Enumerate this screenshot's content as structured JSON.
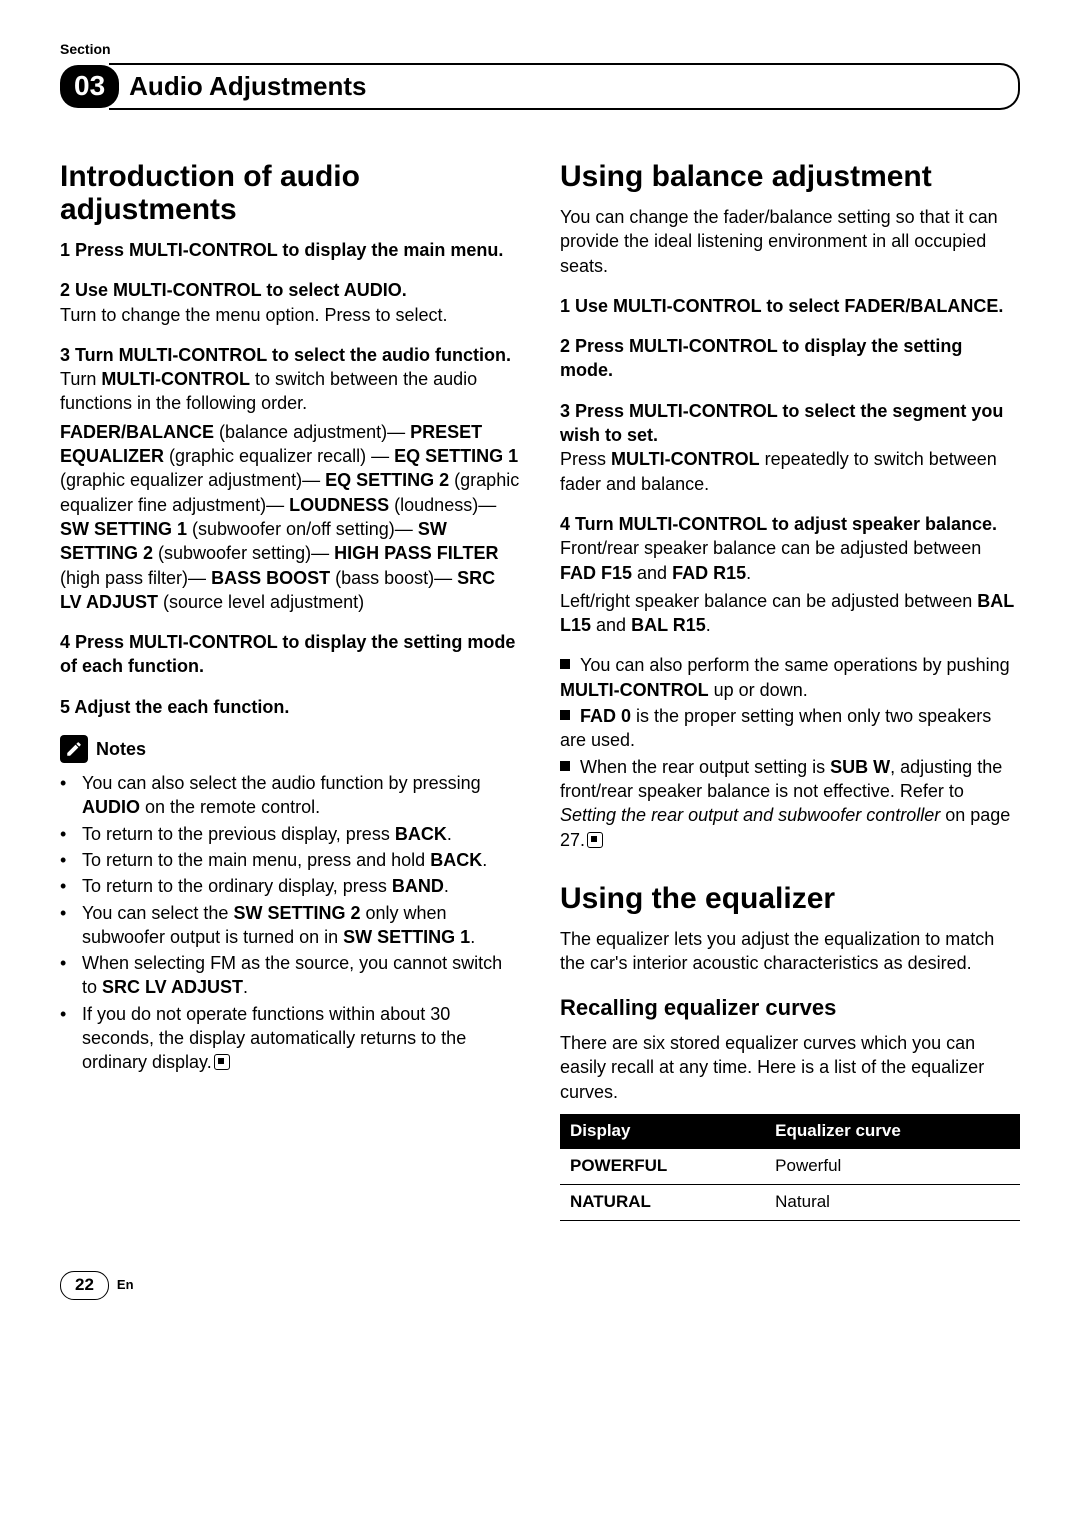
{
  "section_label": "Section",
  "section_number": "03",
  "section_title": "Audio Adjustments",
  "left": {
    "h1": "Introduction of audio adjustments",
    "step1": "1    Press MULTI-CONTROL to display the main menu.",
    "step2_head": "2    Use MULTI-CONTROL to select AUDIO.",
    "step2_body": "Turn to change the menu option. Press to select.",
    "step3_head": "3    Turn MULTI-CONTROL to select the audio function.",
    "step3_l1a": "Turn ",
    "step3_l1b": "MULTI-CONTROL",
    "step3_l1c": " to switch between the audio functions in the following order.",
    "seq_fb": "FADER/BALANCE",
    "seq_fb_d": " (balance adjustment)—",
    "seq_pe": "PRESET EQUALIZER",
    "seq_pe_d": " (graphic equalizer recall) —",
    "seq_e1": "EQ SETTING 1",
    "seq_e1_d": " (graphic equalizer adjustment)—",
    "seq_e2": "EQ SETTING 2",
    "seq_e2_d": " (graphic equalizer fine adjustment)—",
    "seq_ld": "LOUDNESS",
    "seq_ld_d": " (loudness)—",
    "seq_s1": "SW SETTING 1",
    "seq_s1_d": " (subwoofer on/off setting)—",
    "seq_s2": "SW SETTING 2",
    "seq_s2_d": " (subwoofer setting)—",
    "seq_hp": "HIGH PASS FILTER",
    "seq_hp_d": " (high pass filter)—",
    "seq_bb": "BASS BOOST",
    "seq_bb_d": " (bass boost)—",
    "seq_sl": "SRC LV ADJUST",
    "seq_sl_d": " (source level adjustment)",
    "step4": "4    Press MULTI-CONTROL to display the setting mode of each function.",
    "step5": "5    Adjust the each function.",
    "notes_label": "Notes",
    "n1a": "You can also select the audio function by pressing ",
    "n1b": "AUDIO",
    "n1c": " on the remote control.",
    "n2a": "To return to the previous display, press ",
    "n2b": "BACK",
    "n2c": ".",
    "n3a": "To return to the main menu, press and hold ",
    "n3b": "BACK",
    "n3c": ".",
    "n4a": "To return to the ordinary display, press ",
    "n4b": "BAND",
    "n4c": ".",
    "n5a": "You can select the ",
    "n5b": "SW SETTING 2",
    "n5c": " only when subwoofer output is turned on in ",
    "n5d": "SW SETTING 1",
    "n5e": ".",
    "n6a": "When selecting FM as the source, you cannot switch to ",
    "n6b": "SRC LV ADJUST",
    "n6c": ".",
    "n7": "If you do not operate functions within about 30 seconds, the display automatically returns to the ordinary display."
  },
  "right": {
    "h1a": "Using balance adjustment",
    "intro_a": "You can change the fader/balance setting so that it can provide the ideal listening environment in all occupied seats.",
    "s1": "1    Use MULTI-CONTROL to select FADER/BALANCE.",
    "s2": "2    Press MULTI-CONTROL to display the setting mode.",
    "s3h": "3    Press MULTI-CONTROL to select the segment you wish to set.",
    "s3a": "Press ",
    "s3b": "MULTI-CONTROL",
    "s3c": " repeatedly to switch between fader and balance.",
    "s4h": "4    Turn MULTI-CONTROL to adjust speaker balance.",
    "s4a": "Front/rear speaker balance can be adjusted between ",
    "s4b": "FAD F15",
    "s4c": " and ",
    "s4d": "FAD R15",
    "s4e": ".",
    "s4f": "Left/right speaker balance can be adjusted between ",
    "s4g": "BAL L15",
    "s4h2": " and ",
    "s4i": "BAL R15",
    "s4j": ".",
    "sq1a": "You can also perform the same operations by pushing ",
    "sq1b": "MULTI-CONTROL",
    "sq1c": " up or down.",
    "sq2a": "FAD 0",
    "sq2b": " is the proper setting when only two speakers are used.",
    "sq3a": "When the rear output setting is ",
    "sq3b": "SUB W",
    "sq3c": ", adjusting the front/rear speaker balance is not effective. Refer to ",
    "sq3d": "Setting the rear output and subwoofer controller",
    "sq3e": " on page 27.",
    "h1b": "Using the equalizer",
    "intro_b": "The equalizer lets you adjust the equalization to match the car's interior acoustic characteristics as desired.",
    "h2": "Recalling equalizer curves",
    "eq_intro": "There are six stored equalizer curves which you can easily recall at any time. Here is a list of the equalizer curves.",
    "table": {
      "head1": "Display",
      "head2": "Equalizer curve",
      "rows": [
        [
          "POWERFUL",
          "Powerful"
        ],
        [
          "NATURAL",
          "Natural"
        ]
      ]
    }
  },
  "page_number": "22",
  "lang": "En"
}
